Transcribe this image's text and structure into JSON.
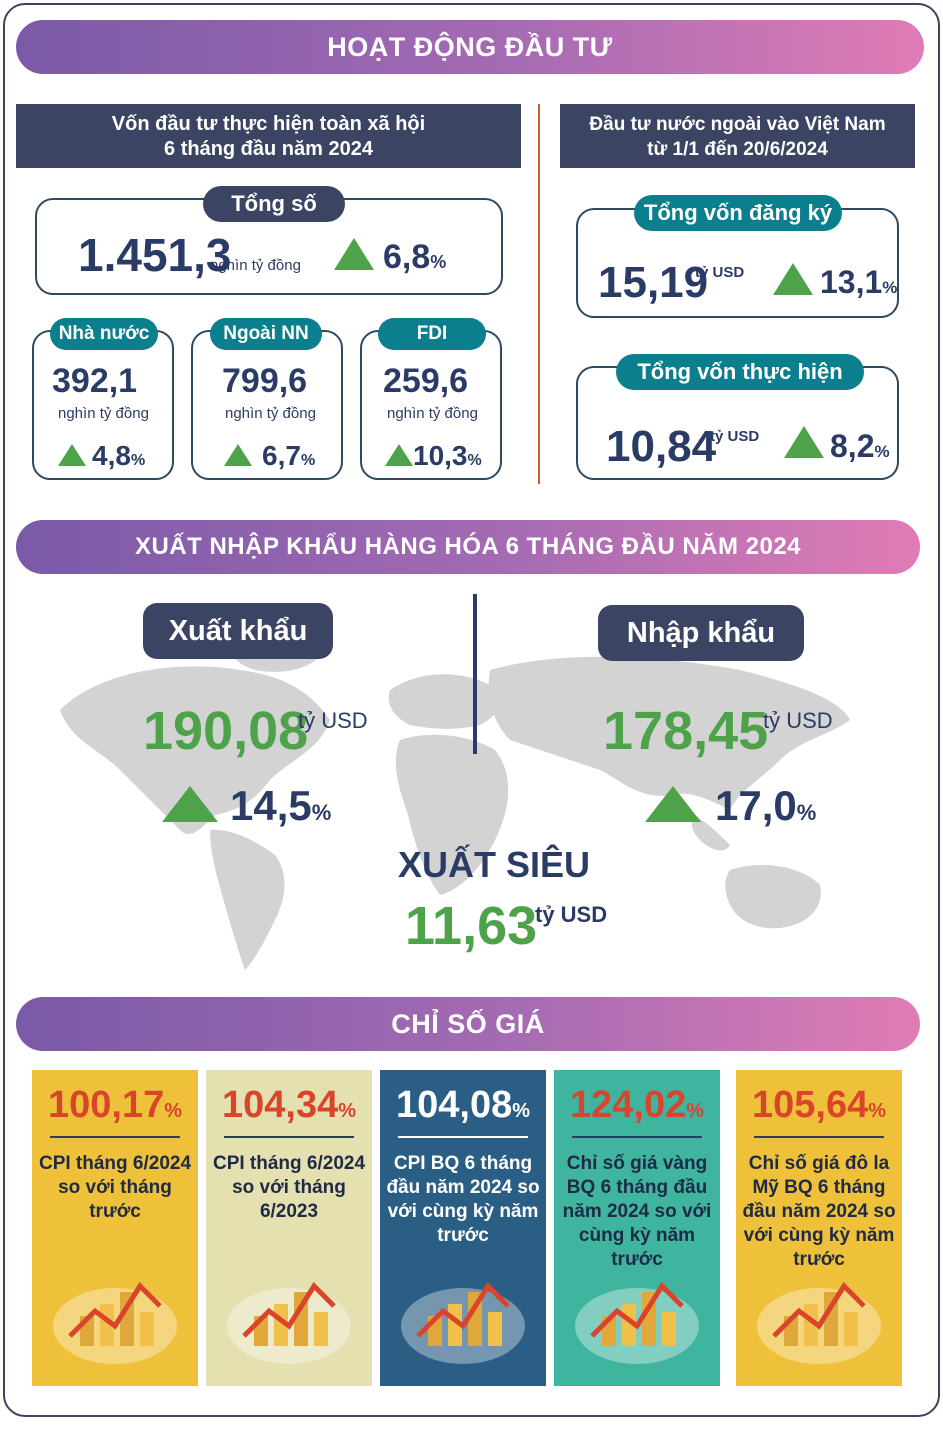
{
  "section1": {
    "title": "HOẠT ĐỘNG ĐẦU TƯ"
  },
  "invest_total": {
    "header_line1": "Vốn đầu tư thực hiện toàn xã hội",
    "header_line2": "6 tháng đầu năm 2024",
    "total_label": "Tổng số",
    "total_value": "1.451,3",
    "total_unit": "nghìn tỷ đồng",
    "total_change": "6,8",
    "items": [
      {
        "label": "Nhà nước",
        "value": "392,1",
        "unit": "nghìn tỷ đồng",
        "change": "4,8"
      },
      {
        "label": "Ngoài NN",
        "value": "799,6",
        "unit": "nghìn tỷ đồng",
        "change": "6,7"
      },
      {
        "label": "FDI",
        "value": "259,6",
        "unit": "nghìn tỷ đồng",
        "change": "10,3"
      }
    ]
  },
  "fdi": {
    "header_line1": "Đầu tư nước ngoài vào Việt Nam",
    "header_line2": "từ 1/1 đến 20/6/2024",
    "registered_label": "Tổng vốn đăng ký",
    "registered_value": "15,19",
    "registered_unit": "tỷ USD",
    "registered_change": "13,1",
    "disbursed_label": "Tổng vốn thực hiện",
    "disbursed_value": "10,84",
    "disbursed_unit": "tỷ USD",
    "disbursed_change": "8,2"
  },
  "section2": {
    "title": "XUẤT NHẬP KHẨU HÀNG HÓA 6 THÁNG ĐẦU NĂM 2024"
  },
  "trade": {
    "export_label": "Xuất khẩu",
    "export_value": "190,08",
    "export_unit": "tỷ USD",
    "export_change": "14,5",
    "import_label": "Nhập khẩu",
    "import_value": "178,45",
    "import_unit": "tỷ USD",
    "import_change": "17,0",
    "surplus_label": "XUẤT SIÊU",
    "surplus_value": "11,63",
    "surplus_unit": "tỷ USD"
  },
  "percent_sign": "%",
  "section3": {
    "title": "CHỈ SỐ GIÁ"
  },
  "prices": [
    {
      "value": "100,17",
      "text": "CPI tháng 6/2024 so với tháng trước",
      "bg": "#efc13a",
      "value_color": "#d9442b",
      "text_color": "#1f2a44"
    },
    {
      "value": "104,34",
      "text": "CPI tháng 6/2024 so với tháng 6/2023",
      "bg": "#e4e0b0",
      "value_color": "#d9442b",
      "text_color": "#1f2a44"
    },
    {
      "value": "104,08",
      "text": "CPI BQ 6 tháng đầu năm 2024 so với cùng kỳ năm trước",
      "bg": "#2b5e84",
      "value_color": "#ffffff",
      "text_color": "#ffffff"
    },
    {
      "value": "124,02",
      "text": "Chỉ số giá vàng BQ 6 tháng đầu năm 2024 so với cùng kỳ năm trước",
      "bg": "#3fb5a0",
      "value_color": "#d9442b",
      "text_color": "#1f2a44"
    },
    {
      "value": "105,64",
      "text": "Chỉ số giá đô la Mỹ BQ 6 tháng đầu năm 2024 so với cùng kỳ năm trước",
      "bg": "#efc13a",
      "value_color": "#d9442b",
      "text_color": "#1f2a44"
    }
  ],
  "colors": {
    "navy": "#3b4463",
    "teal": "#0c7f8e",
    "green": "#4ea34a",
    "red_line": "#d4553a"
  }
}
